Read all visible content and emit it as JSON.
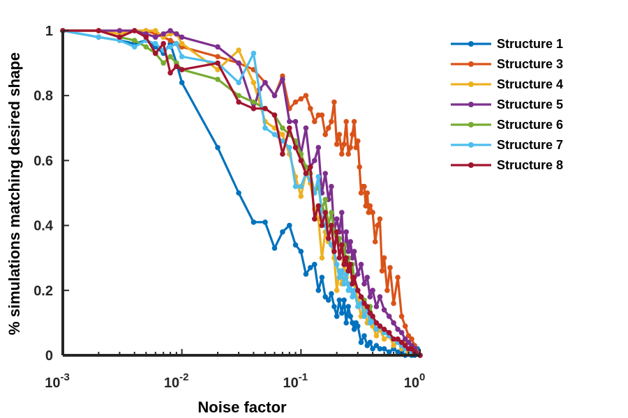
{
  "chart_data": {
    "type": "line",
    "title": "",
    "xlabel": "Noise factor",
    "ylabel": "% simulations matching desired shape",
    "x_scale": "log",
    "xlim": [
      0.001,
      1
    ],
    "ylim": [
      0,
      1
    ],
    "x_ticks": [
      {
        "value": 0.001,
        "base": "10",
        "exp": "-3"
      },
      {
        "value": 0.01,
        "base": "10",
        "exp": "-2"
      },
      {
        "value": 0.1,
        "base": "10",
        "exp": "-1"
      },
      {
        "value": 1,
        "base": "10",
        "exp": "0"
      }
    ],
    "y_ticks": [
      {
        "value": 0,
        "label": "0"
      },
      {
        "value": 0.2,
        "label": "0.2"
      },
      {
        "value": 0.4,
        "label": "0.4"
      },
      {
        "value": 0.6,
        "label": "0.6"
      },
      {
        "value": 0.8,
        "label": "0.8"
      },
      {
        "value": 1,
        "label": "1"
      }
    ],
    "grid": false,
    "legend_position": "right",
    "series": [
      {
        "name": "Structure 1",
        "color": "#0072BD",
        "x": [
          0.001,
          0.002,
          0.003,
          0.004,
          0.005,
          0.006,
          0.007,
          0.008,
          0.009,
          0.01,
          0.02,
          0.03,
          0.04,
          0.05,
          0.06,
          0.07,
          0.08,
          0.09,
          0.1,
          0.11,
          0.12,
          0.13,
          0.14,
          0.15,
          0.16,
          0.17,
          0.18,
          0.19,
          0.2,
          0.21,
          0.22,
          0.23,
          0.24,
          0.25,
          0.26,
          0.27,
          0.28,
          0.29,
          0.3,
          0.32,
          0.34,
          0.36,
          0.38,
          0.4,
          0.43,
          0.46,
          0.5,
          0.55,
          0.6,
          0.65,
          0.7,
          0.75,
          0.8,
          0.85,
          0.9,
          0.95,
          1.0
        ],
        "y": [
          1.0,
          0.98,
          0.97,
          0.96,
          0.97,
          0.95,
          0.93,
          0.96,
          0.9,
          0.84,
          0.64,
          0.5,
          0.41,
          0.41,
          0.33,
          0.38,
          0.4,
          0.34,
          0.32,
          0.25,
          0.27,
          0.28,
          0.2,
          0.24,
          0.18,
          0.17,
          0.19,
          0.15,
          0.12,
          0.17,
          0.13,
          0.17,
          0.1,
          0.15,
          0.12,
          0.1,
          0.08,
          0.1,
          0.09,
          0.04,
          0.06,
          0.03,
          0.04,
          0.02,
          0.03,
          0.02,
          0.02,
          0.01,
          0.02,
          0.01,
          0.01,
          0.0,
          0.01,
          0.0,
          0.0,
          0.02,
          0.0
        ]
      },
      {
        "name": "Structure 3",
        "color": "#D95319",
        "x": [
          0.001,
          0.002,
          0.003,
          0.004,
          0.005,
          0.006,
          0.007,
          0.008,
          0.009,
          0.01,
          0.02,
          0.03,
          0.04,
          0.05,
          0.06,
          0.07,
          0.08,
          0.09,
          0.1,
          0.11,
          0.12,
          0.13,
          0.14,
          0.15,
          0.16,
          0.17,
          0.18,
          0.19,
          0.2,
          0.21,
          0.22,
          0.23,
          0.24,
          0.25,
          0.26,
          0.27,
          0.28,
          0.29,
          0.3,
          0.31,
          0.32,
          0.33,
          0.34,
          0.35,
          0.36,
          0.37,
          0.38,
          0.4,
          0.42,
          0.44,
          0.46,
          0.48,
          0.5,
          0.53,
          0.56,
          0.6,
          0.65,
          0.7,
          0.75,
          0.8,
          0.85,
          0.9,
          1.0
        ],
        "y": [
          1.0,
          1.0,
          1.0,
          1.0,
          1.0,
          0.99,
          0.98,
          0.97,
          0.96,
          0.95,
          0.92,
          0.9,
          0.88,
          0.84,
          0.8,
          0.86,
          0.76,
          0.78,
          0.79,
          0.8,
          0.76,
          0.72,
          0.74,
          0.74,
          0.68,
          0.7,
          0.72,
          0.78,
          0.65,
          0.68,
          0.62,
          0.65,
          0.72,
          0.62,
          0.64,
          0.68,
          0.72,
          0.64,
          0.66,
          0.58,
          0.5,
          0.52,
          0.52,
          0.46,
          0.5,
          0.44,
          0.46,
          0.44,
          0.35,
          0.4,
          0.42,
          0.26,
          0.3,
          0.2,
          0.27,
          0.16,
          0.24,
          0.12,
          0.09,
          0.06,
          0.05,
          0.03,
          0.0
        ]
      },
      {
        "name": "Structure 4",
        "color": "#EDB120",
        "x": [
          0.001,
          0.002,
          0.003,
          0.004,
          0.005,
          0.006,
          0.007,
          0.008,
          0.009,
          0.01,
          0.02,
          0.03,
          0.04,
          0.05,
          0.06,
          0.07,
          0.08,
          0.09,
          0.1,
          0.11,
          0.12,
          0.13,
          0.14,
          0.15,
          0.16,
          0.17,
          0.18,
          0.19,
          0.2,
          0.21,
          0.22,
          0.23,
          0.24,
          0.25,
          0.26,
          0.27,
          0.28,
          0.3,
          0.32,
          0.34,
          0.36,
          0.38,
          0.4,
          0.43,
          0.46,
          0.5,
          0.55,
          0.6,
          0.65,
          0.7,
          0.75,
          0.8,
          0.85,
          0.9,
          1.0
        ],
        "y": [
          1.0,
          1.0,
          0.99,
          1.0,
          1.0,
          1.0,
          0.98,
          0.99,
          0.99,
          0.96,
          0.88,
          0.94,
          0.84,
          0.72,
          0.7,
          0.68,
          0.62,
          0.55,
          0.49,
          0.56,
          0.53,
          0.45,
          0.42,
          0.3,
          0.38,
          0.35,
          0.34,
          0.3,
          0.2,
          0.26,
          0.22,
          0.29,
          0.24,
          0.22,
          0.2,
          0.24,
          0.22,
          0.17,
          0.12,
          0.15,
          0.1,
          0.12,
          0.09,
          0.06,
          0.08,
          0.05,
          0.06,
          0.03,
          0.05,
          0.02,
          0.04,
          0.01,
          0.02,
          0.01,
          0.0
        ]
      },
      {
        "name": "Structure 5",
        "color": "#7E2F8E",
        "x": [
          0.001,
          0.002,
          0.003,
          0.004,
          0.005,
          0.006,
          0.007,
          0.008,
          0.009,
          0.01,
          0.02,
          0.03,
          0.04,
          0.045,
          0.05,
          0.06,
          0.07,
          0.08,
          0.09,
          0.1,
          0.11,
          0.12,
          0.13,
          0.14,
          0.15,
          0.16,
          0.17,
          0.18,
          0.19,
          0.2,
          0.21,
          0.22,
          0.23,
          0.24,
          0.25,
          0.26,
          0.27,
          0.28,
          0.3,
          0.32,
          0.34,
          0.36,
          0.38,
          0.4,
          0.43,
          0.46,
          0.5,
          0.55,
          0.6,
          0.65,
          0.7,
          0.75,
          0.8,
          0.85,
          0.9,
          1.0
        ],
        "y": [
          1.0,
          1.0,
          1.0,
          1.0,
          0.99,
          0.98,
          0.99,
          1.0,
          0.99,
          0.98,
          0.95,
          0.9,
          0.76,
          0.82,
          0.84,
          0.8,
          0.85,
          0.72,
          0.72,
          0.62,
          0.7,
          0.58,
          0.6,
          0.64,
          0.5,
          0.56,
          0.48,
          0.52,
          0.38,
          0.42,
          0.38,
          0.44,
          0.28,
          0.38,
          0.32,
          0.35,
          0.3,
          0.32,
          0.25,
          0.28,
          0.22,
          0.24,
          0.18,
          0.2,
          0.15,
          0.18,
          0.14,
          0.12,
          0.1,
          0.08,
          0.07,
          0.05,
          0.04,
          0.03,
          0.02,
          0.0
        ]
      },
      {
        "name": "Structure 6",
        "color": "#77AC30",
        "x": [
          0.001,
          0.002,
          0.003,
          0.004,
          0.005,
          0.006,
          0.007,
          0.008,
          0.009,
          0.01,
          0.02,
          0.03,
          0.04,
          0.05,
          0.06,
          0.07,
          0.08,
          0.09,
          0.1,
          0.11,
          0.12,
          0.13,
          0.14,
          0.15,
          0.16,
          0.17,
          0.18,
          0.19,
          0.2,
          0.21,
          0.22,
          0.23,
          0.24,
          0.25,
          0.26,
          0.27,
          0.28,
          0.3,
          0.32,
          0.34,
          0.36,
          0.38,
          0.4,
          0.43,
          0.46,
          0.5,
          0.55,
          0.6,
          0.65,
          0.7,
          0.75,
          0.8,
          0.85,
          0.9,
          1.0
        ],
        "y": [
          1.0,
          1.0,
          0.98,
          0.97,
          0.95,
          0.93,
          0.9,
          0.92,
          0.9,
          0.88,
          0.85,
          0.8,
          0.78,
          0.76,
          0.74,
          0.7,
          0.68,
          0.66,
          0.62,
          0.58,
          0.56,
          0.5,
          0.52,
          0.45,
          0.48,
          0.4,
          0.44,
          0.38,
          0.35,
          0.36,
          0.32,
          0.34,
          0.28,
          0.3,
          0.26,
          0.28,
          0.24,
          0.2,
          0.18,
          0.17,
          0.14,
          0.15,
          0.12,
          0.1,
          0.09,
          0.07,
          0.06,
          0.05,
          0.04,
          0.03,
          0.02,
          0.02,
          0.01,
          0.01,
          0.0
        ]
      },
      {
        "name": "Structure 7",
        "color": "#4DBEEE",
        "x": [
          0.001,
          0.002,
          0.003,
          0.004,
          0.005,
          0.006,
          0.007,
          0.008,
          0.009,
          0.01,
          0.02,
          0.03,
          0.04,
          0.05,
          0.06,
          0.07,
          0.08,
          0.09,
          0.1,
          0.11,
          0.12,
          0.13,
          0.14,
          0.15,
          0.16,
          0.17,
          0.18,
          0.19,
          0.2,
          0.21,
          0.22,
          0.23,
          0.24,
          0.25,
          0.26,
          0.27,
          0.28,
          0.3,
          0.32,
          0.34,
          0.36,
          0.38,
          0.4,
          0.43,
          0.46,
          0.5,
          0.55,
          0.6,
          0.65,
          0.7,
          0.75,
          0.8,
          0.85,
          0.9,
          1.0
        ],
        "y": [
          1.0,
          0.98,
          0.97,
          0.95,
          0.97,
          0.96,
          0.94,
          0.95,
          0.96,
          0.92,
          0.9,
          0.84,
          0.93,
          0.7,
          0.68,
          0.66,
          0.64,
          0.52,
          0.52,
          0.56,
          0.54,
          0.5,
          0.55,
          0.42,
          0.4,
          0.36,
          0.34,
          0.32,
          0.28,
          0.24,
          0.26,
          0.22,
          0.25,
          0.2,
          0.22,
          0.18,
          0.2,
          0.15,
          0.16,
          0.12,
          0.14,
          0.1,
          0.11,
          0.08,
          0.09,
          0.07,
          0.06,
          0.05,
          0.04,
          0.03,
          0.02,
          0.02,
          0.01,
          0.01,
          0.0
        ]
      },
      {
        "name": "Structure 8",
        "color": "#A2142F",
        "x": [
          0.001,
          0.002,
          0.003,
          0.004,
          0.005,
          0.006,
          0.007,
          0.008,
          0.009,
          0.01,
          0.02,
          0.03,
          0.04,
          0.05,
          0.06,
          0.07,
          0.08,
          0.09,
          0.1,
          0.11,
          0.12,
          0.13,
          0.14,
          0.15,
          0.16,
          0.17,
          0.18,
          0.19,
          0.2,
          0.21,
          0.22,
          0.23,
          0.24,
          0.25,
          0.26,
          0.27,
          0.28,
          0.3,
          0.32,
          0.34,
          0.36,
          0.38,
          0.4,
          0.43,
          0.46,
          0.5,
          0.55,
          0.6,
          0.65,
          0.7,
          0.75,
          0.8,
          0.85,
          0.9,
          1.0
        ],
        "y": [
          1.0,
          1.0,
          0.98,
          1.0,
          0.98,
          0.93,
          0.96,
          0.87,
          0.89,
          0.88,
          0.9,
          0.78,
          0.76,
          0.76,
          0.74,
          0.62,
          0.7,
          0.64,
          0.6,
          0.56,
          0.58,
          0.42,
          0.46,
          0.4,
          0.44,
          0.36,
          0.4,
          0.32,
          0.38,
          0.3,
          0.34,
          0.28,
          0.3,
          0.26,
          0.28,
          0.22,
          0.24,
          0.2,
          0.18,
          0.16,
          0.15,
          0.13,
          0.12,
          0.1,
          0.09,
          0.08,
          0.07,
          0.05,
          0.05,
          0.04,
          0.03,
          0.02,
          0.02,
          0.01,
          0.0
        ]
      }
    ]
  }
}
